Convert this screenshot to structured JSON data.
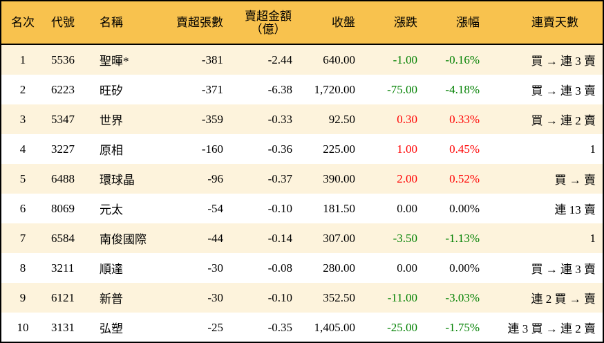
{
  "colors": {
    "header_bg": "#F8C24E",
    "alt_row_bg": "#FDF3DC",
    "up": "#FF0000",
    "down": "#008000"
  },
  "headers": [
    "名次",
    "代號",
    "名稱",
    "賣超張數",
    "賣超金額",
    "（億）",
    "收盤",
    "漲跌",
    "漲幅",
    "連賣天數"
  ],
  "rows": [
    {
      "rank": "1",
      "code": "5536",
      "name": "聖暉*",
      "shares": "-381",
      "amount": "-2.44",
      "close": "640.00",
      "change": "-1.00",
      "pct": "-0.16%",
      "dir": "neg",
      "streak": "買 → 連 3 賣"
    },
    {
      "rank": "2",
      "code": "6223",
      "name": "旺矽",
      "shares": "-371",
      "amount": "-6.38",
      "close": "1,720.00",
      "change": "-75.00",
      "pct": "-4.18%",
      "dir": "neg",
      "streak": "買 → 連 3 賣"
    },
    {
      "rank": "3",
      "code": "5347",
      "name": "世界",
      "shares": "-359",
      "amount": "-0.33",
      "close": "92.50",
      "change": "0.30",
      "pct": "0.33%",
      "dir": "pos",
      "streak": "買 → 連 2 賣"
    },
    {
      "rank": "4",
      "code": "3227",
      "name": "原相",
      "shares": "-160",
      "amount": "-0.36",
      "close": "225.00",
      "change": "1.00",
      "pct": "0.45%",
      "dir": "pos",
      "streak": "1"
    },
    {
      "rank": "5",
      "code": "6488",
      "name": "環球晶",
      "shares": "-96",
      "amount": "-0.37",
      "close": "390.00",
      "change": "2.00",
      "pct": "0.52%",
      "dir": "pos",
      "streak": "買 → 賣"
    },
    {
      "rank": "6",
      "code": "8069",
      "name": "元太",
      "shares": "-54",
      "amount": "-0.10",
      "close": "181.50",
      "change": "0.00",
      "pct": "0.00%",
      "dir": "flat",
      "streak": "連 13 賣"
    },
    {
      "rank": "7",
      "code": "6584",
      "name": "南俊國際",
      "shares": "-44",
      "amount": "-0.14",
      "close": "307.00",
      "change": "-3.50",
      "pct": "-1.13%",
      "dir": "neg",
      "streak": "1"
    },
    {
      "rank": "8",
      "code": "3211",
      "name": "順達",
      "shares": "-30",
      "amount": "-0.08",
      "close": "280.00",
      "change": "0.00",
      "pct": "0.00%",
      "dir": "flat",
      "streak": "買 → 連 3 賣"
    },
    {
      "rank": "9",
      "code": "6121",
      "name": "新普",
      "shares": "-30",
      "amount": "-0.10",
      "close": "352.50",
      "change": "-11.00",
      "pct": "-3.03%",
      "dir": "neg",
      "streak": "連 2 買 → 賣"
    },
    {
      "rank": "10",
      "code": "3131",
      "name": "弘塑",
      "shares": "-25",
      "amount": "-0.35",
      "close": "1,405.00",
      "change": "-25.00",
      "pct": "-1.75%",
      "dir": "neg",
      "streak": "連 3 買 → 連 2 賣"
    }
  ]
}
